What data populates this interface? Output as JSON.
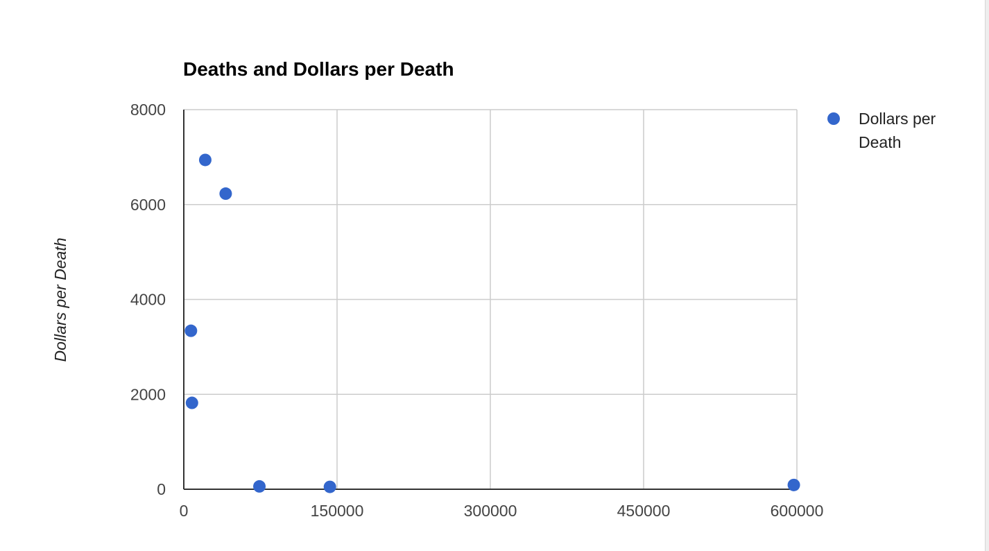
{
  "chart_data": {
    "type": "scatter",
    "title": "Deaths and Dollars per Death",
    "xlabel": "",
    "ylabel": "Dollars per Death",
    "xlim": [
      0,
      600000
    ],
    "ylim": [
      0,
      8000
    ],
    "x_ticks": [
      0,
      150000,
      300000,
      450000,
      600000
    ],
    "y_ticks": [
      0,
      2000,
      4000,
      6000,
      8000
    ],
    "x_tick_labels": [
      "0",
      "150000",
      "300000",
      "450000",
      "600000"
    ],
    "y_tick_labels": [
      "0",
      "2000",
      "4000",
      "6000",
      "8000"
    ],
    "grid": true,
    "legend_position": "right",
    "series": [
      {
        "name": "Dollars per Death",
        "color": "#3366cc",
        "points": [
          {
            "x": 7000,
            "y": 3340
          },
          {
            "x": 8000,
            "y": 1820
          },
          {
            "x": 21000,
            "y": 6940
          },
          {
            "x": 41000,
            "y": 6230
          },
          {
            "x": 74000,
            "y": 60
          },
          {
            "x": 143000,
            "y": 50
          },
          {
            "x": 597000,
            "y": 90
          }
        ]
      }
    ]
  }
}
